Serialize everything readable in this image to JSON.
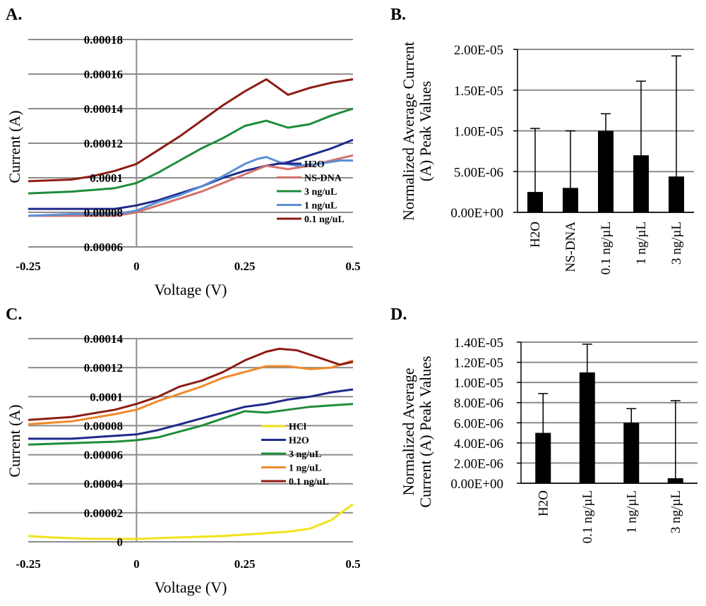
{
  "chart_data": [
    {
      "panel": "A.",
      "type": "line",
      "xlabel": "Voltage (V)",
      "ylabel": "Current (A)",
      "xlim": [
        -0.25,
        0.5
      ],
      "ylim": [
        6e-05,
        0.00018
      ],
      "x_ticks": [
        {
          "v": -0.25,
          "label": "-0.25"
        },
        {
          "v": 0,
          "label": "0"
        },
        {
          "v": 0.25,
          "label": "0.25"
        },
        {
          "v": 0.5,
          "label": "0.5"
        }
      ],
      "y_ticks": [
        {
          "v": 6e-05,
          "label": "0.00006"
        },
        {
          "v": 8e-05,
          "label": "0.00008"
        },
        {
          "v": 0.0001,
          "label": "0.0001"
        },
        {
          "v": 0.00012,
          "label": "0.00012"
        },
        {
          "v": 0.00014,
          "label": "0.00014"
        },
        {
          "v": 0.00016,
          "label": "0.00016"
        },
        {
          "v": 0.00018,
          "label": "0.00018"
        }
      ],
      "series": [
        {
          "name": "H2O",
          "color": "#1f2a8c",
          "points": [
            [
              -0.25,
              8.2e-05
            ],
            [
              -0.15,
              8.2e-05
            ],
            [
              -0.05,
              8.2e-05
            ],
            [
              0,
              8.4e-05
            ],
            [
              0.05,
              8.7e-05
            ],
            [
              0.1,
              9.1e-05
            ],
            [
              0.15,
              9.5e-05
            ],
            [
              0.2,
              0.0001
            ],
            [
              0.25,
              0.000104
            ],
            [
              0.3,
              0.000107
            ],
            [
              0.35,
              0.000109
            ],
            [
              0.4,
              0.000113
            ],
            [
              0.45,
              0.000117
            ],
            [
              0.5,
              0.000122
            ]
          ]
        },
        {
          "name": "NS-DNA",
          "color": "#d4706b",
          "points": [
            [
              -0.25,
              7.8e-05
            ],
            [
              -0.15,
              7.8e-05
            ],
            [
              -0.05,
              7.8e-05
            ],
            [
              0,
              8e-05
            ],
            [
              0.05,
              8.4e-05
            ],
            [
              0.1,
              8.8e-05
            ],
            [
              0.15,
              9.2e-05
            ],
            [
              0.2,
              9.7e-05
            ],
            [
              0.25,
              0.000102
            ],
            [
              0.3,
              0.000107
            ],
            [
              0.35,
              0.000105
            ],
            [
              0.4,
              0.000107
            ],
            [
              0.45,
              0.00011
            ],
            [
              0.5,
              0.000113
            ]
          ]
        },
        {
          "name": "3 ng/uL",
          "color": "#1e8c3a",
          "points": [
            [
              -0.25,
              9.1e-05
            ],
            [
              -0.15,
              9.2e-05
            ],
            [
              -0.1,
              9.3e-05
            ],
            [
              -0.05,
              9.4e-05
            ],
            [
              0,
              9.7e-05
            ],
            [
              0.05,
              0.000103
            ],
            [
              0.1,
              0.00011
            ],
            [
              0.15,
              0.000117
            ],
            [
              0.2,
              0.000123
            ],
            [
              0.25,
              0.00013
            ],
            [
              0.3,
              0.000133
            ],
            [
              0.35,
              0.000129
            ],
            [
              0.4,
              0.000131
            ],
            [
              0.45,
              0.000136
            ],
            [
              0.5,
              0.00014
            ]
          ]
        },
        {
          "name": "1 ng/uL",
          "color": "#5b8fd6",
          "points": [
            [
              -0.25,
              7.8e-05
            ],
            [
              -0.15,
              7.9e-05
            ],
            [
              -0.05,
              7.9e-05
            ],
            [
              0,
              8.1e-05
            ],
            [
              0.05,
              8.6e-05
            ],
            [
              0.1,
              9e-05
            ],
            [
              0.15,
              9.5e-05
            ],
            [
              0.2,
              0.000101
            ],
            [
              0.25,
              0.000108
            ],
            [
              0.28,
              0.000111
            ],
            [
              0.3,
              0.000112
            ],
            [
              0.33,
              0.000109
            ],
            [
              0.37,
              0.000107
            ],
            [
              0.42,
              0.000108
            ],
            [
              0.47,
              0.00011
            ],
            [
              0.5,
              0.00011
            ]
          ]
        },
        {
          "name": "0.1 ng/uL",
          "color": "#8c1c14",
          "points": [
            [
              -0.25,
              9.8e-05
            ],
            [
              -0.15,
              9.9e-05
            ],
            [
              -0.1,
              0.000101
            ],
            [
              -0.05,
              0.000104
            ],
            [
              0,
              0.000108
            ],
            [
              0.05,
              0.000116
            ],
            [
              0.1,
              0.000124
            ],
            [
              0.15,
              0.000133
            ],
            [
              0.2,
              0.000142
            ],
            [
              0.25,
              0.00015
            ],
            [
              0.3,
              0.000157
            ],
            [
              0.35,
              0.000148
            ],
            [
              0.4,
              0.000152
            ],
            [
              0.45,
              0.000155
            ],
            [
              0.5,
              0.000157
            ]
          ]
        }
      ]
    },
    {
      "panel": "B.",
      "type": "bar",
      "ylabel": "Normalized Average Current (A) Peak Values",
      "ylim": [
        0,
        2e-05
      ],
      "y_ticks": [
        {
          "v": 0,
          "label": "0.00E+00"
        },
        {
          "v": 5e-06,
          "label": "5.00E-06"
        },
        {
          "v": 1e-05,
          "label": "1.00E-05"
        },
        {
          "v": 1.5e-05,
          "label": "1.50E-05"
        },
        {
          "v": 2e-05,
          "label": "2.00E-05"
        }
      ],
      "categories": [
        "H2O",
        "NS-DNA",
        "0.1 ng/µL",
        "1 ng/µL",
        "3 ng/µL"
      ],
      "values": [
        2.5e-06,
        3e-06,
        1e-05,
        7e-06,
        4.4e-06
      ],
      "error_upper": [
        1.03e-05,
        1e-05,
        1.21e-05,
        1.61e-05,
        1.92e-05
      ]
    },
    {
      "panel": "C.",
      "type": "line",
      "xlabel": "Voltage (V)",
      "ylabel": "Current (A)",
      "xlim": [
        -0.25,
        0.5
      ],
      "ylim": [
        0,
        0.00014
      ],
      "x_ticks": [
        {
          "v": -0.25,
          "label": "-0.25"
        },
        {
          "v": 0,
          "label": "0"
        },
        {
          "v": 0.25,
          "label": "0.25"
        },
        {
          "v": 0.5,
          "label": "0.5"
        }
      ],
      "y_ticks": [
        {
          "v": 0,
          "label": "0"
        },
        {
          "v": 2e-05,
          "label": "0.00002"
        },
        {
          "v": 4e-05,
          "label": "0.00004"
        },
        {
          "v": 6e-05,
          "label": "0.00006"
        },
        {
          "v": 8e-05,
          "label": "0.00008"
        },
        {
          "v": 0.0001,
          "label": "0.0001"
        },
        {
          "v": 0.00012,
          "label": "0.00012"
        },
        {
          "v": 0.00014,
          "label": "0.00014"
        }
      ],
      "series": [
        {
          "name": "HCl",
          "color": "#f2e21a",
          "points": [
            [
              -0.25,
              4e-06
            ],
            [
              -0.2,
              3e-06
            ],
            [
              -0.1,
              2e-06
            ],
            [
              0,
              2e-06
            ],
            [
              0.1,
              3e-06
            ],
            [
              0.2,
              4e-06
            ],
            [
              0.3,
              6e-06
            ],
            [
              0.35,
              7e-06
            ],
            [
              0.4,
              9e-06
            ],
            [
              0.45,
              1.5e-05
            ],
            [
              0.5,
              2.6e-05
            ]
          ]
        },
        {
          "name": "H2O",
          "color": "#1f2a8c",
          "points": [
            [
              -0.25,
              7.1e-05
            ],
            [
              -0.15,
              7.1e-05
            ],
            [
              -0.05,
              7.3e-05
            ],
            [
              0,
              7.4e-05
            ],
            [
              0.05,
              7.7e-05
            ],
            [
              0.1,
              8.1e-05
            ],
            [
              0.15,
              8.5e-05
            ],
            [
              0.2,
              8.9e-05
            ],
            [
              0.25,
              9.3e-05
            ],
            [
              0.3,
              9.5e-05
            ],
            [
              0.35,
              9.8e-05
            ],
            [
              0.4,
              0.0001
            ],
            [
              0.45,
              0.000103
            ],
            [
              0.5,
              0.000105
            ]
          ]
        },
        {
          "name": "3 ng/uL",
          "color": "#1e8c3a",
          "points": [
            [
              -0.25,
              6.7e-05
            ],
            [
              -0.15,
              6.8e-05
            ],
            [
              -0.05,
              6.9e-05
            ],
            [
              0,
              7e-05
            ],
            [
              0.05,
              7.2e-05
            ],
            [
              0.1,
              7.6e-05
            ],
            [
              0.15,
              8e-05
            ],
            [
              0.2,
              8.5e-05
            ],
            [
              0.25,
              9e-05
            ],
            [
              0.3,
              8.9e-05
            ],
            [
              0.35,
              9.1e-05
            ],
            [
              0.4,
              9.3e-05
            ],
            [
              0.45,
              9.4e-05
            ],
            [
              0.5,
              9.5e-05
            ]
          ]
        },
        {
          "name": "1 ng/uL",
          "color": "#f0892a",
          "points": [
            [
              -0.25,
              8.1e-05
            ],
            [
              -0.15,
              8.3e-05
            ],
            [
              -0.05,
              8.8e-05
            ],
            [
              0,
              9.1e-05
            ],
            [
              0.05,
              9.7e-05
            ],
            [
              0.1,
              0.000102
            ],
            [
              0.15,
              0.000107
            ],
            [
              0.2,
              0.000113
            ],
            [
              0.25,
              0.000117
            ],
            [
              0.3,
              0.000121
            ],
            [
              0.35,
              0.000121
            ],
            [
              0.4,
              0.000119
            ],
            [
              0.45,
              0.00012
            ],
            [
              0.5,
              0.000125
            ]
          ]
        },
        {
          "name": "0.1 ng/uL",
          "color": "#8c1c14",
          "points": [
            [
              -0.25,
              8.4e-05
            ],
            [
              -0.15,
              8.6e-05
            ],
            [
              -0.05,
              9.1e-05
            ],
            [
              0,
              9.5e-05
            ],
            [
              0.05,
              0.0001
            ],
            [
              0.1,
              0.000107
            ],
            [
              0.15,
              0.000111
            ],
            [
              0.2,
              0.000117
            ],
            [
              0.25,
              0.000125
            ],
            [
              0.3,
              0.000131
            ],
            [
              0.33,
              0.000133
            ],
            [
              0.37,
              0.000132
            ],
            [
              0.42,
              0.000127
            ],
            [
              0.47,
              0.000122
            ],
            [
              0.5,
              0.000124
            ]
          ]
        }
      ]
    },
    {
      "panel": "D.",
      "type": "bar",
      "ylabel": "Normalized Average Current (A) Peak Values",
      "ylim": [
        0,
        1.4e-05
      ],
      "y_ticks": [
        {
          "v": 0,
          "label": "0.00E+00"
        },
        {
          "v": 2e-06,
          "label": "2.00E-06"
        },
        {
          "v": 4e-06,
          "label": "4.00E-06"
        },
        {
          "v": 6e-06,
          "label": "6.00E-06"
        },
        {
          "v": 8e-06,
          "label": "8.00E-06"
        },
        {
          "v": 1e-05,
          "label": "1.00E-05"
        },
        {
          "v": 1.2e-05,
          "label": "1.20E-05"
        },
        {
          "v": 1.4e-05,
          "label": "1.40E-05"
        }
      ],
      "categories": [
        "H2O",
        "0.1 ng/µL",
        "1 ng/µL",
        "3 ng/µL"
      ],
      "values": [
        5e-06,
        1.1e-05,
        6e-06,
        5e-07
      ],
      "error_upper": [
        8.9e-06,
        1.38e-05,
        7.4e-06,
        8.2e-06
      ]
    }
  ]
}
